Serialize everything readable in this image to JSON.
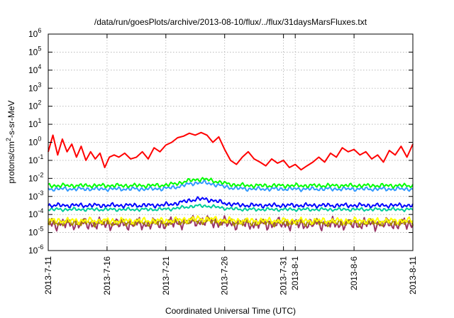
{
  "chart_data": {
    "type": "line",
    "title": "/data/run/goesPlots/archive/2013-08-10/flux/../flux/31daysMarsFluxes.txt",
    "xlabel": "Coordinated Universal Time (UTC)",
    "ylabel_base": "protons/cm",
    "ylabel_sup": "2",
    "ylabel_tail": "-s-sr-MeV",
    "yscale": "log",
    "ylim": [
      1e-06,
      1000000.0
    ],
    "y_ticks": [
      {
        "exp": "-6"
      },
      {
        "exp": "-5"
      },
      {
        "exp": "-4"
      },
      {
        "exp": "-3"
      },
      {
        "exp": "-2"
      },
      {
        "exp": "-1"
      },
      {
        "exp": "0"
      },
      {
        "exp": "1"
      },
      {
        "exp": "2"
      },
      {
        "exp": "3"
      },
      {
        "exp": "4"
      },
      {
        "exp": "5"
      },
      {
        "exp": "6"
      }
    ],
    "y_tick_base": "10",
    "x_ticks": [
      "2013-7-11",
      "2013-7-16",
      "2013-7-21",
      "2013-7-26",
      "2013-7-31",
      "2013-8-1",
      "2013-8-6",
      "2013-8-11"
    ],
    "x_tick_days": [
      0,
      5,
      10,
      15,
      20,
      21,
      26,
      31
    ],
    "xlim_days": [
      0,
      31
    ],
    "grid": true,
    "legend": "none",
    "series": [
      {
        "color": "#ff0000",
        "values": [
          {
            "d": 0.0,
            "v": 0.3
          },
          {
            "d": 0.4,
            "v": 2.5
          },
          {
            "d": 0.8,
            "v": 0.2
          },
          {
            "d": 1.2,
            "v": 1.5
          },
          {
            "d": 1.6,
            "v": 0.3
          },
          {
            "d": 2.0,
            "v": 0.8
          },
          {
            "d": 2.4,
            "v": 0.15
          },
          {
            "d": 2.8,
            "v": 0.6
          },
          {
            "d": 3.2,
            "v": 0.1
          },
          {
            "d": 3.6,
            "v": 0.3
          },
          {
            "d": 4.0,
            "v": 0.12
          },
          {
            "d": 4.4,
            "v": 0.25
          },
          {
            "d": 4.8,
            "v": 0.04
          },
          {
            "d": 5.2,
            "v": 0.15
          },
          {
            "d": 5.6,
            "v": 0.2
          },
          {
            "d": 6.0,
            "v": 0.15
          },
          {
            "d": 6.5,
            "v": 0.25
          },
          {
            "d": 7.0,
            "v": 0.12
          },
          {
            "d": 7.5,
            "v": 0.15
          },
          {
            "d": 8.0,
            "v": 0.3
          },
          {
            "d": 8.5,
            "v": 0.12
          },
          {
            "d": 9.0,
            "v": 0.5
          },
          {
            "d": 9.5,
            "v": 0.3
          },
          {
            "d": 10.0,
            "v": 0.7
          },
          {
            "d": 10.5,
            "v": 1.0
          },
          {
            "d": 11.0,
            "v": 1.8
          },
          {
            "d": 11.5,
            "v": 2.2
          },
          {
            "d": 12.0,
            "v": 3.2
          },
          {
            "d": 12.5,
            "v": 2.5
          },
          {
            "d": 13.0,
            "v": 3.5
          },
          {
            "d": 13.5,
            "v": 2.5
          },
          {
            "d": 14.0,
            "v": 1.0
          },
          {
            "d": 14.5,
            "v": 2.0
          },
          {
            "d": 15.0,
            "v": 0.4
          },
          {
            "d": 15.5,
            "v": 0.1
          },
          {
            "d": 16.0,
            "v": 0.06
          },
          {
            "d": 16.5,
            "v": 0.15
          },
          {
            "d": 17.0,
            "v": 0.3
          },
          {
            "d": 17.5,
            "v": 0.12
          },
          {
            "d": 18.0,
            "v": 0.08
          },
          {
            "d": 18.5,
            "v": 0.05
          },
          {
            "d": 19.0,
            "v": 0.12
          },
          {
            "d": 19.5,
            "v": 0.07
          },
          {
            "d": 20.0,
            "v": 0.1
          },
          {
            "d": 20.5,
            "v": 0.04
          },
          {
            "d": 21.0,
            "v": 0.06
          },
          {
            "d": 21.5,
            "v": 0.03
          },
          {
            "d": 22.0,
            "v": 0.05
          },
          {
            "d": 22.5,
            "v": 0.08
          },
          {
            "d": 23.0,
            "v": 0.15
          },
          {
            "d": 23.5,
            "v": 0.08
          },
          {
            "d": 24.0,
            "v": 0.25
          },
          {
            "d": 24.5,
            "v": 0.15
          },
          {
            "d": 25.0,
            "v": 0.5
          },
          {
            "d": 25.5,
            "v": 0.3
          },
          {
            "d": 26.0,
            "v": 0.4
          },
          {
            "d": 26.5,
            "v": 0.2
          },
          {
            "d": 27.0,
            "v": 0.3
          },
          {
            "d": 27.5,
            "v": 0.12
          },
          {
            "d": 28.0,
            "v": 0.2
          },
          {
            "d": 28.5,
            "v": 0.08
          },
          {
            "d": 29.0,
            "v": 0.35
          },
          {
            "d": 29.5,
            "v": 0.2
          },
          {
            "d": 30.0,
            "v": 0.6
          },
          {
            "d": 30.5,
            "v": 0.15
          },
          {
            "d": 31.0,
            "v": 0.8
          }
        ]
      },
      {
        "color": "#00ff00",
        "base": 0.004,
        "amp": 0.12,
        "bump": 0.35,
        "bumpCenter": 13.0
      },
      {
        "color": "#3399ff",
        "base": 0.0026,
        "amp": 0.12,
        "bump": 0.35,
        "bumpCenter": 13.0
      },
      {
        "color": "#0000ff",
        "base": 0.00032,
        "amp": 0.13,
        "bump": 0.35,
        "bumpCenter": 13.0
      },
      {
        "color": "#00cc99",
        "base": 0.00019,
        "amp": 0.1,
        "bump": 0.2,
        "bumpCenter": 13.0
      },
      {
        "color": "#ffff00",
        "base": 4.5e-05,
        "amp": 0.18,
        "bump": 0.1,
        "bumpCenter": 13.0
      },
      {
        "color": "#aa8800",
        "base": 3.5e-05,
        "amp": 0.2,
        "bump": 0.1,
        "bumpCenter": 13.0
      },
      {
        "color": "#993366",
        "base": 3e-05,
        "amp": 0.35,
        "bump": 0.15,
        "bumpCenter": 13.0
      }
    ]
  }
}
